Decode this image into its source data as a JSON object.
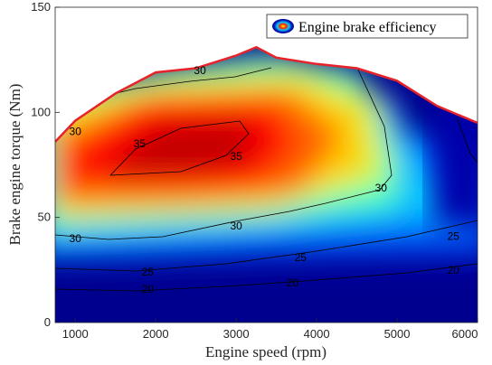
{
  "chart_data": {
    "type": "heatmap",
    "title": "",
    "xlabel": "Engine speed (rpm)",
    "ylabel": "Brake engine torque (Nm)",
    "xlim": [
      750,
      6000
    ],
    "ylim": [
      0,
      150
    ],
    "x_ticks": [
      "1000",
      "2000",
      "3000",
      "4000",
      "5000",
      "6000"
    ],
    "y_ticks": [
      "0",
      "50",
      "100",
      "150"
    ],
    "colormap": "jet",
    "legend": {
      "label": "Engine brake efficiency",
      "position": "top-right"
    },
    "max_torque_curve": {
      "color": "#e8222b",
      "x": [
        750,
        1000,
        1500,
        2000,
        2500,
        3000,
        3250,
        3500,
        4000,
        4500,
        5000,
        5500,
        6000
      ],
      "y": [
        86,
        96,
        109,
        119,
        121,
        127,
        131,
        126,
        123,
        121,
        115,
        103,
        95
      ]
    },
    "contour_levels": [
      20,
      25,
      30,
      35
    ],
    "contour_labels": [
      {
        "text": "30",
        "x": 1000,
        "y": 91
      },
      {
        "text": "30",
        "x": 2550,
        "y": 120
      },
      {
        "text": "35",
        "x": 1800,
        "y": 85
      },
      {
        "text": "35",
        "x": 3000,
        "y": 79
      },
      {
        "text": "30",
        "x": 1000,
        "y": 40
      },
      {
        "text": "30",
        "x": 3000,
        "y": 46
      },
      {
        "text": "30",
        "x": 4800,
        "y": 64
      },
      {
        "text": "25",
        "x": 1900,
        "y": 24
      },
      {
        "text": "25",
        "x": 3800,
        "y": 31
      },
      {
        "text": "25",
        "x": 5700,
        "y": 41
      },
      {
        "text": "20",
        "x": 1900,
        "y": 16
      },
      {
        "text": "20",
        "x": 3700,
        "y": 19
      },
      {
        "text": "20",
        "x": 5700,
        "y": 25
      }
    ]
  }
}
